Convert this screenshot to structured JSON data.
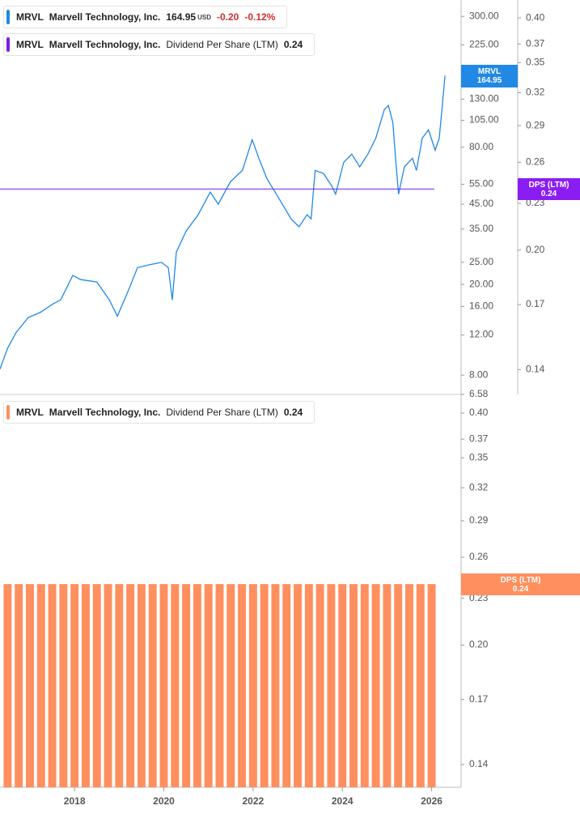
{
  "chart_data": [
    {
      "type": "line",
      "log_scale": true,
      "xlim": [
        2016.33,
        2026.66
      ],
      "ylim": [
        6.58,
        354
      ],
      "yticks": [
        {
          "value": 300,
          "label": "300.00"
        },
        {
          "value": 225,
          "label": "225.00"
        },
        {
          "value": 130,
          "label": "130.00"
        },
        {
          "value": 105,
          "label": "105.00"
        },
        {
          "value": 80,
          "label": "80.00"
        },
        {
          "value": 55,
          "label": "55.00"
        },
        {
          "value": 45,
          "label": "45.00"
        },
        {
          "value": 35,
          "label": "35.00"
        },
        {
          "value": 25,
          "label": "25.00"
        },
        {
          "value": 20,
          "label": "20.00"
        },
        {
          "value": 16,
          "label": "16.00"
        },
        {
          "value": 12,
          "label": "12.00"
        },
        {
          "value": 8,
          "label": "8.00"
        },
        6.58
      ],
      "y2lim": [
        0.13,
        0.422
      ],
      "y2ticks": [
        {
          "value": 0.4,
          "label": "0.40"
        },
        0.37,
        0.35,
        0.32,
        0.29,
        0.26,
        0.23,
        {
          "value": 0.2,
          "label": "0.20"
        },
        0.17,
        0.14
      ],
      "series": [
        {
          "name": "MRVL",
          "description": "Marvell Technology, Inc.",
          "color": "#2188e6",
          "currency": "USD",
          "change": {
            "value": -0.2,
            "label": "-0.20"
          },
          "change_pct": {
            "value": -0.12,
            "label": "-0.12%"
          },
          "x": [
            2016.33,
            2016.5,
            2016.69,
            2016.96,
            2017.24,
            2017.51,
            2017.69,
            2017.96,
            2018.14,
            2018.5,
            2018.78,
            2018.96,
            2019.23,
            2019.41,
            2019.68,
            2019.95,
            2020.1,
            2020.19,
            2020.28,
            2020.5,
            2020.77,
            2021.04,
            2021.22,
            2021.49,
            2021.76,
            2021.98,
            2022.13,
            2022.31,
            2022.58,
            2022.85,
            2023.03,
            2023.21,
            2023.3,
            2023.39,
            2023.58,
            2023.76,
            2023.85,
            2024.03,
            2024.21,
            2024.39,
            2024.57,
            2024.75,
            2024.94,
            2025.03,
            2025.13,
            2025.2,
            2025.26,
            2025.39,
            2025.57,
            2025.66,
            2025.79,
            2025.93,
            2026.08,
            2026.17,
            2026.24,
            2026.3
          ],
          "values": [
            8.5,
            10.5,
            12.3,
            14.3,
            15.1,
            16.4,
            17.1,
            21.9,
            21,
            20.5,
            17.1,
            14.5,
            19.3,
            23.7,
            24.4,
            25,
            23.7,
            17.1,
            27.7,
            34.3,
            40.4,
            50.8,
            45,
            56.3,
            63.3,
            86.3,
            71.5,
            58.2,
            47.6,
            38.8,
            35.8,
            40.4,
            38.8,
            63.3,
            61.3,
            54.1,
            49.8,
            68.7,
            74.6,
            65.6,
            74.6,
            87.7,
            117,
            122,
            103,
            68.7,
            49.8,
            65.6,
            71.5,
            63.3,
            87.7,
            95.3,
            77.6,
            87.7,
            122,
            164.95
          ]
        },
        {
          "name": "MRVL",
          "description": "Marvell Technology, Inc.",
          "metric": "Dividend Per Share (LTM)",
          "badge_label": "DPS (LTM)",
          "color": "#7a1fe3",
          "badge_color": "#8a1ef2",
          "axis": "y2",
          "x": [
            2016.33,
            2026.06
          ],
          "values": [
            0.24,
            0.24
          ]
        }
      ]
    },
    {
      "type": "bar",
      "log_scale": true,
      "xlim": [
        2016.33,
        2026.66
      ],
      "xticks": [
        2018,
        2020,
        2022,
        2024,
        2026
      ],
      "ylim": [
        0.1308,
        0.4148
      ],
      "yticks": [
        {
          "value": 0.4,
          "label": "0.40"
        },
        0.37,
        0.35,
        0.32,
        0.29,
        0.26,
        0.23,
        {
          "value": 0.2,
          "label": "0.20"
        },
        0.17,
        0.14
      ],
      "series": [
        {
          "name": "MRVL",
          "description": "Marvell Technology, Inc.",
          "metric": "Dividend Per Share (LTM)",
          "badge_label": "DPS (LTM)",
          "color": "#ff8f5e",
          "x": [
            2016.5,
            2016.75,
            2017,
            2017.25,
            2017.5,
            2017.75,
            2018,
            2018.25,
            2018.5,
            2018.75,
            2019,
            2019.25,
            2019.5,
            2019.75,
            2020,
            2020.25,
            2020.5,
            2020.75,
            2021,
            2021.25,
            2021.5,
            2021.75,
            2022,
            2022.25,
            2022.5,
            2022.75,
            2023,
            2023.25,
            2023.5,
            2023.75,
            2024,
            2024.25,
            2024.5,
            2024.75,
            2025,
            2025.25,
            2025.5,
            2025.75,
            2026
          ],
          "values": [
            0.24,
            0.24,
            0.24,
            0.24,
            0.24,
            0.24,
            0.24,
            0.24,
            0.24,
            0.24,
            0.24,
            0.24,
            0.24,
            0.24,
            0.24,
            0.24,
            0.24,
            0.24,
            0.24,
            0.24,
            0.24,
            0.24,
            0.24,
            0.24,
            0.24,
            0.24,
            0.24,
            0.24,
            0.24,
            0.24,
            0.24,
            0.24,
            0.24,
            0.24,
            0.24,
            0.24,
            0.24,
            0.24,
            0.24
          ]
        }
      ]
    }
  ]
}
